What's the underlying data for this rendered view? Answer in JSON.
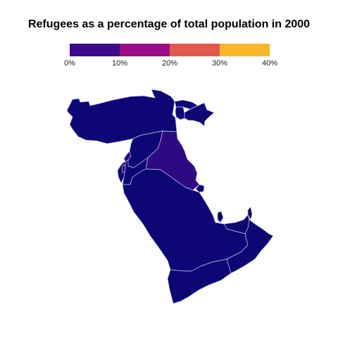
{
  "title": "Refugees as a percentage of total population in 2000",
  "legend": {
    "bins": [
      {
        "color": "#3d0a8a"
      },
      {
        "color": "#9a0f85"
      },
      {
        "color": "#e0594c"
      },
      {
        "color": "#f8b62a"
      }
    ],
    "ticks": [
      "0%",
      "10%",
      "20%",
      "30%",
      "40%"
    ]
  },
  "map": {
    "colors": {
      "low": "#0d0775",
      "mid": "#2d0a82",
      "border": "#c9c4e6"
    }
  }
}
